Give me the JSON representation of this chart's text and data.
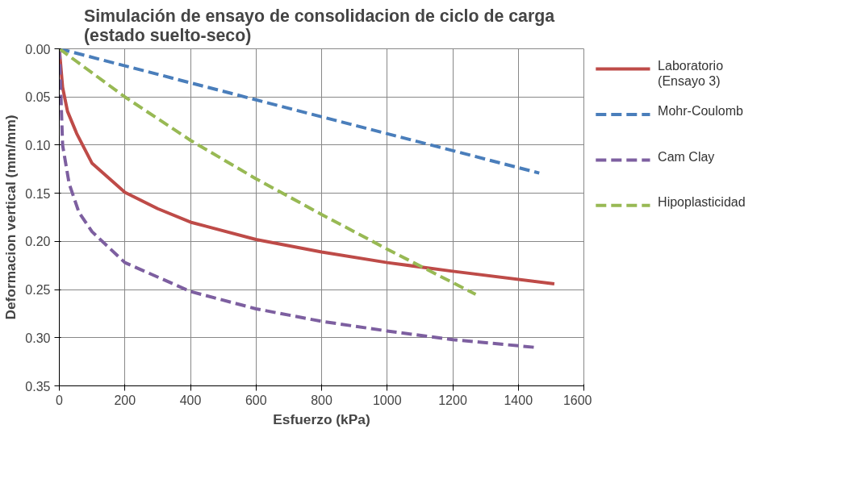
{
  "chart_data": {
    "type": "line",
    "title": "Simulación  de ensayo de consolidacion de ciclo de carga\n(estado suelto-seco)",
    "xlabel": "Esfuerzo (kPa)",
    "ylabel": "Deformacion vertical (mm/mm)",
    "xlim": [
      0,
      1600
    ],
    "xticks": [
      0,
      200,
      400,
      600,
      800,
      1000,
      1200,
      1400,
      1600
    ],
    "ylim": [
      0.35,
      0
    ],
    "yticks": [
      {
        "value": 0,
        "label": "0.00"
      },
      {
        "value": 0.05,
        "label": "0.05"
      },
      {
        "value": 0.1,
        "label": "0.10"
      },
      {
        "value": 0.15,
        "label": "0.15"
      },
      {
        "value": 0.2,
        "label": "0.20"
      },
      {
        "value": 0.25,
        "label": "0.25"
      },
      {
        "value": 0.3,
        "label": "0.30"
      },
      {
        "value": 0.35,
        "label": "0.35"
      }
    ],
    "grid": true,
    "legend": "right",
    "marker": "none",
    "series": [
      {
        "name": "Laboratorio (Ensayo 3)",
        "color": "#be4b48",
        "line_style": "solid",
        "x": [
          0,
          10,
          25,
          53,
          100,
          200,
          300,
          400,
          600,
          800,
          1000,
          1200,
          1510
        ],
        "values": [
          0,
          0.04,
          0.065,
          0.088,
          0.119,
          0.149,
          0.166,
          0.18,
          0.198,
          0.211,
          0.222,
          0.231,
          0.244
        ]
      },
      {
        "name": "Mohr-Coulomb",
        "color": "#4a7ebb",
        "line_style": "dashed",
        "x": [
          0,
          600,
          1464
        ],
        "values": [
          0,
          0.053,
          0.129
        ]
      },
      {
        "name": "Cam Clay",
        "color": "#7d5fa0",
        "line_style": "dashed",
        "x": [
          0,
          5,
          10,
          30,
          60,
          100,
          200,
          400,
          600,
          800,
          1000,
          1200,
          1450
        ],
        "values": [
          0,
          0.05,
          0.1,
          0.14,
          0.17,
          0.19,
          0.222,
          0.252,
          0.27,
          0.283,
          0.293,
          0.302,
          0.31
        ]
      },
      {
        "name": "Hipoplasticidad",
        "color": "#98b954",
        "line_style": "dashed",
        "x": [
          0,
          200,
          400,
          600,
          800,
          1000,
          1270
        ],
        "values": [
          0,
          0.05,
          0.095,
          0.135,
          0.172,
          0.208,
          0.255
        ]
      }
    ]
  }
}
